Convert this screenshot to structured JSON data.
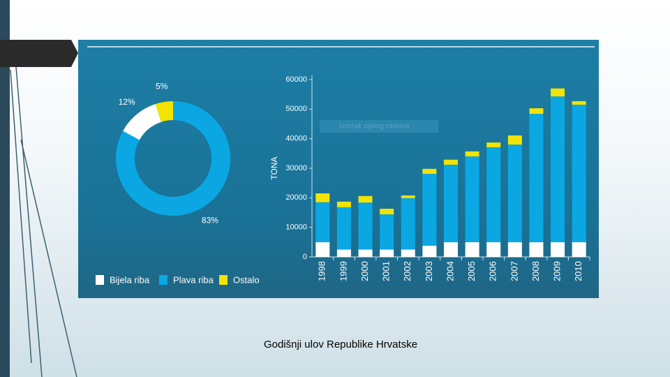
{
  "chart_data": [
    {
      "type": "pie",
      "values": [
        83,
        12,
        5
      ],
      "value_labels": [
        "83%",
        "12%",
        "5%"
      ],
      "colors": [
        "#0aa7e3",
        "#ffffff",
        "#f2e300"
      ],
      "donut": true
    },
    {
      "type": "stacked-bar",
      "y_label": "TONA",
      "categories": [
        "1998",
        "1999",
        "2000",
        "2001",
        "2002",
        "2003",
        "2004",
        "2005",
        "2006",
        "2007",
        "2008",
        "2009",
        "2010"
      ],
      "series": [
        {
          "name": "Bijela riba",
          "color": "#ffffff",
          "values": [
            5000,
            2500,
            2500,
            2500,
            2500,
            3800,
            5000,
            5000,
            5000,
            5000,
            5000,
            5000,
            5000
          ]
        },
        {
          "name": "Plava riba",
          "color": "#0aa7e3",
          "values": [
            13500,
            14300,
            15900,
            11900,
            17400,
            24300,
            26200,
            29000,
            32100,
            33000,
            43400,
            49300,
            46500
          ]
        },
        {
          "name": "Ostalo",
          "color": "#f2e300",
          "values": [
            3000,
            1900,
            2200,
            1900,
            900,
            1700,
            1700,
            1700,
            1600,
            3100,
            1900,
            2700,
            1200
          ]
        }
      ],
      "ylim": [
        0,
        60000
      ],
      "yticks": [
        0,
        10000,
        20000,
        30000,
        40000,
        50000,
        60000
      ]
    }
  ],
  "overlay_label": "Izrezak cijelog zaslona",
  "caption": "Godišnji ulov Republike Hrvatske"
}
